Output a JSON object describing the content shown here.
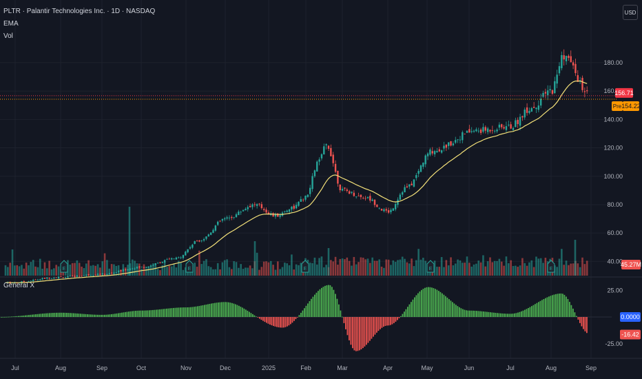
{
  "header": {
    "title": "PLTR · Palantir Technologies Inc. · 1D · NASDAQ",
    "ema_label": "EMA",
    "vol_label": "Vol",
    "currency": "USD"
  },
  "price_axis": {
    "ticks": [
      "180.00",
      "160.00",
      "140.00",
      "120.00",
      "100.00",
      "80.00",
      "60.00",
      "40.00"
    ],
    "tick_values": [
      180,
      160,
      140,
      120,
      100,
      80,
      60,
      40
    ]
  },
  "badges": {
    "last_price": "156.71",
    "pre_label": "Pre",
    "pre_price": "154.22",
    "volume": "45.27M"
  },
  "indicator": {
    "name": "General X",
    "ticks": [
      "25.00",
      "-25.00"
    ],
    "zero_badge": "0.0000",
    "value_badge": "-16.42"
  },
  "time_axis": {
    "labels": [
      "Jul",
      "Aug",
      "Sep",
      "Oct",
      "Nov",
      "Dec",
      "2025",
      "Feb",
      "Mar",
      "Apr",
      "May",
      "Jun",
      "Jul",
      "Aug",
      "Sep"
    ]
  },
  "colors": {
    "background": "#131722",
    "up": "#26a69a",
    "down": "#ef5350",
    "ema": "#f5e27a",
    "osc_up": "#4caf50",
    "osc_down": "#ef5350",
    "last_price": "#f23645",
    "pre": "#ff9800",
    "zero": "#2962ff"
  },
  "chart_data": {
    "type": "candlestick",
    "symbol": "PLTR",
    "interval": "1D",
    "ylim": [
      30,
      195
    ],
    "price_path": [
      [
        "Jul",
        25
      ],
      [
        "Aug",
        29
      ],
      [
        "Sep",
        31
      ],
      [
        "Oct",
        36
      ],
      [
        "Nov",
        42
      ],
      [
        "Nov",
        55
      ],
      [
        "Dec",
        70
      ],
      [
        "Dec",
        80
      ],
      [
        "2025",
        72
      ],
      [
        "2025",
        78
      ],
      [
        "Feb",
        85
      ],
      [
        "Feb",
        110
      ],
      [
        "Feb",
        122
      ],
      [
        "Mar",
        90
      ],
      [
        "Mar",
        85
      ],
      [
        "Apr",
        75
      ],
      [
        "Apr",
        92
      ],
      [
        "May",
        118
      ],
      [
        "Jun",
        132
      ],
      [
        "Jul",
        135
      ],
      [
        "Jul",
        148
      ],
      [
        "Aug",
        160
      ],
      [
        "Aug",
        185
      ],
      [
        "Sep",
        157
      ]
    ],
    "ema_series": "EMA",
    "volume_series": "Vol",
    "oscillator": {
      "name": "General X",
      "range": [
        -30,
        30
      ],
      "path": [
        [
          "Jul",
          0
        ],
        [
          "Aug",
          4
        ],
        [
          "Sep",
          2
        ],
        [
          "Oct",
          6
        ],
        [
          "Nov",
          9
        ],
        [
          "Dec",
          14
        ],
        [
          "2025",
          -10
        ],
        [
          "Feb",
          30
        ],
        [
          "Mar",
          -32
        ],
        [
          "Apr",
          -8
        ],
        [
          "May",
          28
        ],
        [
          "Jun",
          6
        ],
        [
          "Jul",
          3
        ],
        [
          "Aug",
          22
        ],
        [
          "Sep",
          -16
        ]
      ]
    }
  }
}
